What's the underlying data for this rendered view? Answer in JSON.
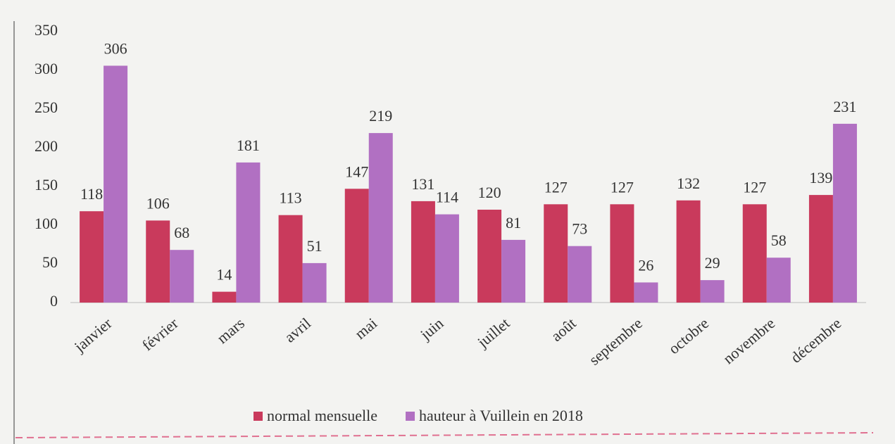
{
  "chart_data": {
    "type": "bar",
    "categories": [
      "janvier",
      "février",
      "mars",
      "avril",
      "mai",
      "juin",
      "juillet",
      "août",
      "septembre",
      "octobre",
      "novembre",
      "décembre"
    ],
    "series": [
      {
        "name": "normal mensuelle",
        "color": "#c93a5c",
        "values": [
          118,
          106,
          14,
          113,
          147,
          131,
          120,
          127,
          127,
          132,
          127,
          139
        ]
      },
      {
        "name": "hauteur à Vuillein en 2018",
        "color": "#b170c2",
        "values": [
          306,
          68,
          181,
          51,
          219,
          114,
          81,
          73,
          26,
          29,
          58,
          231
        ]
      }
    ],
    "ylim": [
      0,
      350
    ],
    "yticks": [
      0,
      50,
      100,
      150,
      200,
      250,
      300,
      350
    ],
    "grid": false,
    "legend": "bottom"
  }
}
